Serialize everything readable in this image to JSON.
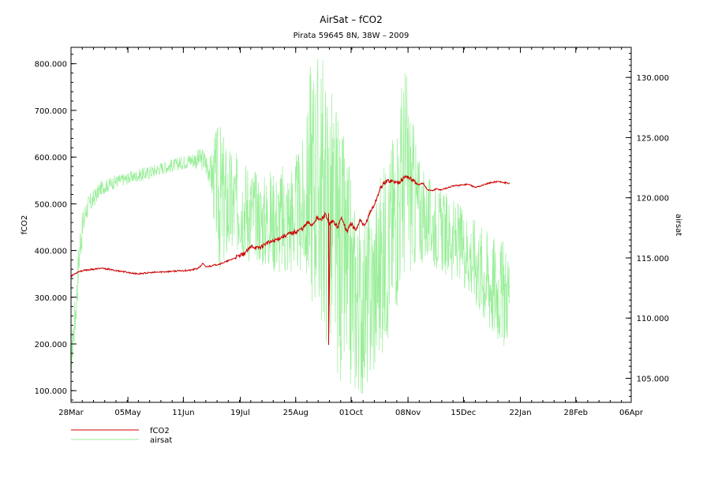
{
  "chart_data": {
    "type": "line",
    "title": "AirSat – fCO2",
    "subtitle": "Pirata 59645 8N, 38W – 2009",
    "ylabel": "fCO2",
    "y2label": "airsat",
    "x_ticks": [
      "28Mar",
      "05May",
      "11Jun",
      "19Jul",
      "25Aug",
      "01Oct",
      "08Nov",
      "15Dec",
      "22Jan",
      "28Feb",
      "06Apr"
    ],
    "y_ticks": [
      "100.000",
      "200.000",
      "300.000",
      "400.000",
      "500.000",
      "600.000",
      "700.000",
      "800.000"
    ],
    "y2_ticks": [
      "105.000",
      "110.000",
      "115.000",
      "120.000",
      "125.000",
      "130.000"
    ],
    "ylim": [
      75,
      835
    ],
    "y2lim": [
      103.0,
      132.5
    ],
    "legend_position": "bottom-left",
    "series": [
      {
        "name": "fCO2",
        "color": "#cc0000",
        "axis": "left",
        "points": [
          [
            0,
            345
          ],
          [
            5,
            355
          ],
          [
            10,
            358
          ],
          [
            15,
            360
          ],
          [
            20,
            362
          ],
          [
            25,
            360
          ],
          [
            30,
            357
          ],
          [
            35,
            355
          ],
          [
            40,
            352
          ],
          [
            45,
            350
          ],
          [
            50,
            352
          ],
          [
            55,
            353
          ],
          [
            60,
            354
          ],
          [
            65,
            355
          ],
          [
            70,
            356
          ],
          [
            75,
            357
          ],
          [
            80,
            358
          ],
          [
            85,
            362
          ],
          [
            88,
            372
          ],
          [
            90,
            365
          ],
          [
            95,
            368
          ],
          [
            100,
            372
          ],
          [
            105,
            378
          ],
          [
            110,
            385
          ],
          [
            115,
            392
          ],
          [
            118,
            400
          ],
          [
            121,
            410
          ],
          [
            124,
            405
          ],
          [
            127,
            408
          ],
          [
            130,
            415
          ],
          [
            135,
            420
          ],
          [
            140,
            428
          ],
          [
            145,
            435
          ],
          [
            150,
            440
          ],
          [
            155,
            448
          ],
          [
            158,
            460
          ],
          [
            161,
            455
          ],
          [
            164,
            470
          ],
          [
            167,
            465
          ],
          [
            170,
            480
          ],
          [
            172,
            455
          ],
          [
            175,
            462
          ],
          [
            178,
            450
          ],
          [
            181,
            472
          ],
          [
            184,
            440
          ],
          [
            187,
            458
          ],
          [
            190,
            442
          ],
          [
            193,
            465
          ],
          [
            196,
            450
          ],
          [
            199,
            478
          ],
          [
            202,
            495
          ],
          [
            204,
            510
          ],
          [
            206,
            530
          ],
          [
            209,
            545
          ],
          [
            212,
            550
          ],
          [
            215,
            548
          ],
          [
            218,
            545
          ],
          [
            221,
            552
          ],
          [
            224,
            560
          ],
          [
            226,
            555
          ],
          [
            229,
            548
          ],
          [
            232,
            540
          ],
          [
            235,
            545
          ],
          [
            238,
            530
          ],
          [
            241,
            528
          ],
          [
            244,
            532
          ],
          [
            247,
            530
          ],
          [
            250,
            533
          ],
          [
            255,
            538
          ],
          [
            260,
            540
          ],
          [
            265,
            542
          ],
          [
            270,
            535
          ],
          [
            275,
            540
          ],
          [
            280,
            545
          ],
          [
            285,
            548
          ],
          [
            290,
            545
          ],
          [
            293,
            543
          ]
        ]
      },
      {
        "name": "airsat",
        "color": "#99ee99",
        "axis": "right",
        "points": [
          [
            0,
            106.5
          ],
          [
            2,
            110.5
          ],
          [
            4,
            114.5
          ],
          [
            6,
            116.5
          ],
          [
            8,
            118.0
          ],
          [
            10,
            119.0
          ],
          [
            15,
            120.0
          ],
          [
            20,
            120.8
          ],
          [
            25,
            121.2
          ],
          [
            30,
            121.3
          ],
          [
            35,
            121.5
          ],
          [
            40,
            121.7
          ],
          [
            45,
            121.9
          ],
          [
            50,
            122.0
          ],
          [
            55,
            122.3
          ],
          [
            60,
            122.5
          ],
          [
            62,
            122.0
          ],
          [
            65,
            122.5
          ],
          [
            70,
            122.8
          ],
          [
            75,
            123.0
          ],
          [
            80,
            123.3
          ],
          [
            85,
            123.5
          ],
          [
            90,
            123.1
          ],
          [
            95,
            121.5
          ],
          [
            98,
            118.0
          ],
          [
            101,
            121.5
          ],
          [
            104,
            116.0
          ],
          [
            107,
            123.0
          ],
          [
            110,
            117.5
          ],
          [
            113,
            120.5
          ],
          [
            116,
            116.5
          ],
          [
            119,
            121.0
          ],
          [
            122,
            117.0
          ],
          [
            125,
            120.0
          ],
          [
            128,
            116.0
          ],
          [
            131,
            120.5
          ],
          [
            134,
            116.5
          ],
          [
            137,
            120.0
          ],
          [
            140,
            115.5
          ],
          [
            143,
            121.5
          ],
          [
            146,
            114.5
          ],
          [
            149,
            120.0
          ],
          [
            152,
            115.5
          ],
          [
            155,
            119.0
          ],
          [
            158,
            116.0
          ],
          [
            160,
            125.0
          ],
          [
            163,
            113.5
          ],
          [
            166,
            121.0
          ],
          [
            169,
            112.0
          ],
          [
            172,
            120.0
          ],
          [
            175,
            110.0
          ],
          [
            178,
            118.5
          ],
          [
            181,
            108.0
          ],
          [
            184,
            116.5
          ],
          [
            187,
            106.5
          ],
          [
            190,
            113.0
          ],
          [
            193,
            105.5
          ],
          [
            196,
            112.0
          ],
          [
            199,
            106.0
          ],
          [
            202,
            111.5
          ],
          [
            205,
            107.5
          ],
          [
            208,
            116.5
          ],
          [
            211,
            110.0
          ],
          [
            214,
            118.0
          ],
          [
            217,
            113.0
          ],
          [
            220,
            121.0
          ],
          [
            223,
            117.0
          ],
          [
            226,
            123.0
          ],
          [
            229,
            115.0
          ],
          [
            232,
            120.5
          ],
          [
            235,
            116.0
          ],
          [
            238,
            119.5
          ],
          [
            241,
            116.5
          ],
          [
            244,
            119.0
          ],
          [
            247,
            117.0
          ],
          [
            250,
            118.5
          ],
          [
            253,
            116.5
          ],
          [
            256,
            118.0
          ],
          [
            259,
            116.0
          ],
          [
            262,
            117.5
          ],
          [
            265,
            115.5
          ],
          [
            268,
            116.5
          ],
          [
            271,
            114.5
          ],
          [
            274,
            115.5
          ],
          [
            277,
            112.5
          ],
          [
            280,
            114.0
          ],
          [
            283,
            112.0
          ],
          [
            286,
            113.5
          ],
          [
            289,
            111.5
          ],
          [
            292,
            113.0
          ],
          [
            293,
            112.5
          ]
        ],
        "envelope": [
          [
            0,
            105.0,
            108.0
          ],
          [
            3,
            108.5,
            112.5
          ],
          [
            6,
            114.5,
            118.0
          ],
          [
            10,
            118.0,
            120.0
          ],
          [
            20,
            120.2,
            121.4
          ],
          [
            30,
            120.8,
            121.9
          ],
          [
            40,
            121.2,
            122.2
          ],
          [
            50,
            121.4,
            122.6
          ],
          [
            60,
            121.9,
            123.0
          ],
          [
            70,
            122.2,
            123.3
          ],
          [
            80,
            122.5,
            123.8
          ],
          [
            88,
            122.2,
            124.2
          ],
          [
            93,
            121.0,
            123.5
          ],
          [
            96,
            117.0,
            125.5
          ],
          [
            99,
            113.5,
            126.5
          ],
          [
            103,
            114.0,
            125.0
          ],
          [
            108,
            114.5,
            124.0
          ],
          [
            113,
            115.5,
            123.5
          ],
          [
            118,
            114.5,
            123.5
          ],
          [
            123,
            115.0,
            122.5
          ],
          [
            128,
            114.0,
            122.0
          ],
          [
            133,
            114.0,
            122.5
          ],
          [
            138,
            113.5,
            122.5
          ],
          [
            143,
            113.0,
            123.0
          ],
          [
            148,
            113.5,
            123.5
          ],
          [
            153,
            113.5,
            124.0
          ],
          [
            157,
            112.5,
            126.0
          ],
          [
            160,
            111.5,
            132.5
          ],
          [
            163,
            110.5,
            132.5
          ],
          [
            167,
            109.0,
            132.5
          ],
          [
            171,
            107.5,
            130.5
          ],
          [
            175,
            106.0,
            129.0
          ],
          [
            179,
            104.5,
            127.0
          ],
          [
            183,
            103.8,
            124.5
          ],
          [
            187,
            103.5,
            122.0
          ],
          [
            191,
            103.5,
            119.5
          ],
          [
            195,
            103.5,
            118.0
          ],
          [
            199,
            104.0,
            119.5
          ],
          [
            203,
            105.0,
            121.0
          ],
          [
            207,
            106.5,
            122.5
          ],
          [
            211,
            108.0,
            123.5
          ],
          [
            215,
            110.0,
            126.0
          ],
          [
            219,
            111.5,
            128.5
          ],
          [
            223,
            113.0,
            132.0
          ],
          [
            227,
            113.5,
            127.5
          ],
          [
            231,
            114.0,
            124.5
          ],
          [
            235,
            114.5,
            122.5
          ],
          [
            240,
            114.5,
            121.5
          ],
          [
            245,
            114.0,
            121.0
          ],
          [
            250,
            113.5,
            120.5
          ],
          [
            255,
            113.0,
            120.0
          ],
          [
            260,
            113.0,
            119.5
          ],
          [
            265,
            112.0,
            119.0
          ],
          [
            270,
            111.0,
            118.5
          ],
          [
            275,
            109.5,
            118.0
          ],
          [
            280,
            108.5,
            117.5
          ],
          [
            284,
            108.0,
            117.0
          ],
          [
            288,
            107.5,
            116.5
          ],
          [
            292,
            108.0,
            116.5
          ],
          [
            293,
            108.5,
            116.0
          ]
        ]
      }
    ],
    "spike_points": [
      [
        172,
        480
      ],
      [
        172,
        198
      ],
      [
        173,
        462
      ]
    ]
  }
}
